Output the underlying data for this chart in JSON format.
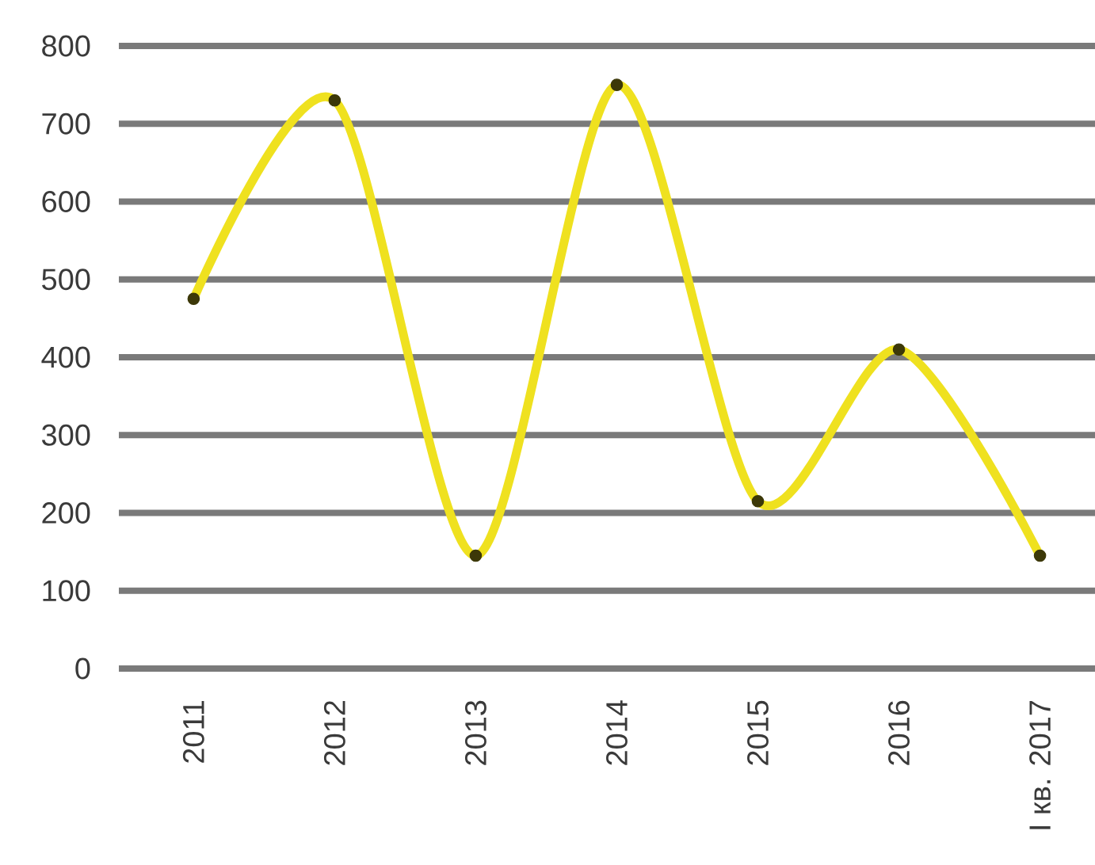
{
  "chart_data": {
    "type": "line",
    "categories": [
      "2011",
      "2012",
      "2013",
      "2014",
      "2015",
      "2016",
      "I кв. 2017"
    ],
    "values": [
      475,
      730,
      145,
      750,
      215,
      410,
      145
    ],
    "color": "#efe11f",
    "ylim": [
      0,
      800
    ],
    "yticks": [
      0,
      100,
      200,
      300,
      400,
      500,
      600,
      700,
      800
    ],
    "grid": "y",
    "marker": "circle",
    "line_style": "solid"
  }
}
